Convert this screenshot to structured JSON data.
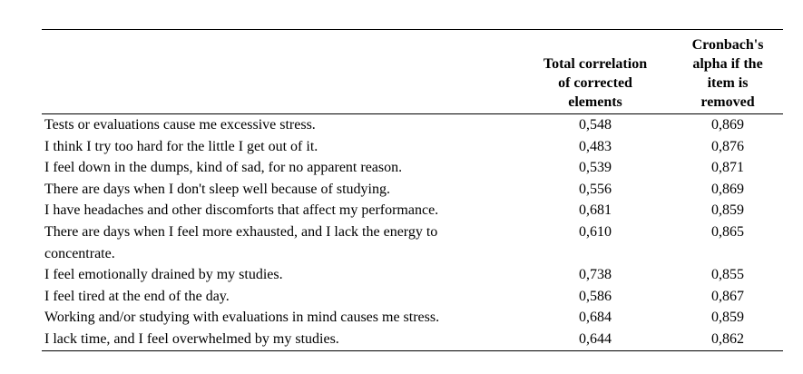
{
  "table": {
    "header": {
      "item_column_label": "",
      "total_correlation_lines": [
        "Total correlation",
        "of corrected",
        "elements"
      ],
      "alpha_lines": [
        "Cronbach's",
        "alpha if the",
        "item is",
        "removed"
      ]
    },
    "rows": [
      {
        "item": "Tests or evaluations cause me excessive stress.",
        "total_correlation": "0,548",
        "alpha_if_removed": "0,869"
      },
      {
        "item": "I think I try too hard for the little I get out of it.",
        "total_correlation": "0,483",
        "alpha_if_removed": "0,876"
      },
      {
        "item": "I feel down in the dumps, kind of sad, for no apparent reason.",
        "total_correlation": "0,539",
        "alpha_if_removed": "0,871"
      },
      {
        "item": "There are days when I don't sleep well because of studying.",
        "total_correlation": "0,556",
        "alpha_if_removed": "0,869"
      },
      {
        "item": "I have headaches and other discomforts that affect my performance.",
        "total_correlation": "0,681",
        "alpha_if_removed": "0,859"
      },
      {
        "item": "There are days when I feel more exhausted, and I lack the energy to concentrate.",
        "total_correlation": "0,610",
        "alpha_if_removed": "0,865"
      },
      {
        "item": "I feel emotionally drained by my studies.",
        "total_correlation": "0,738",
        "alpha_if_removed": "0,855"
      },
      {
        "item": "I feel tired at the end of the day.",
        "total_correlation": "0,586",
        "alpha_if_removed": "0,867"
      },
      {
        "item": "Working and/or studying with evaluations in mind causes me stress.",
        "total_correlation": "0,684",
        "alpha_if_removed": "0,859"
      },
      {
        "item": "I lack time, and I feel overwhelmed by my studies.",
        "total_correlation": "0,644",
        "alpha_if_removed": "0,862"
      }
    ],
    "colors": {
      "text": "#000000",
      "background": "#ffffff",
      "rule": "#000000"
    }
  }
}
